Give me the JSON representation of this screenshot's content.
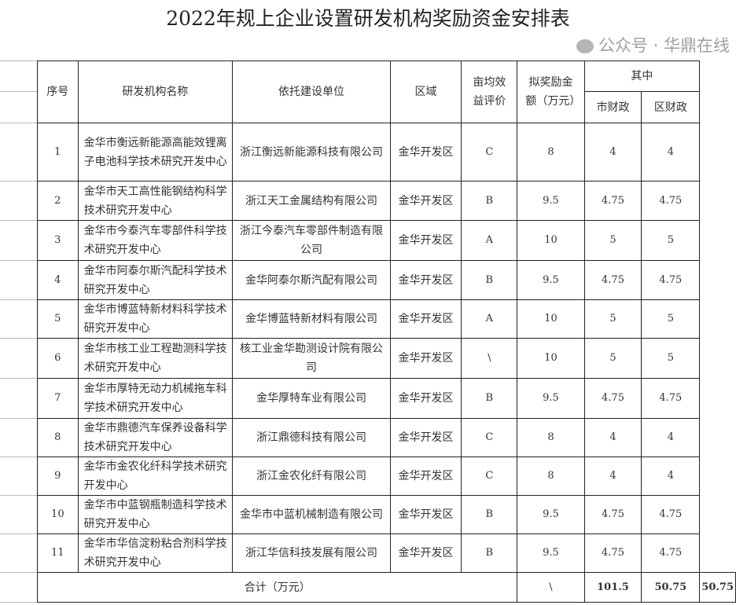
{
  "title": "2022年规上企业设置研发机构奖励资金安排表",
  "headers": {
    "seq": "序号",
    "name": "研发机构名称",
    "unit": "依托建设单位",
    "area": "区域",
    "rating": "亩均效益评价",
    "amount": "拟奖励金额（万元）",
    "of_which": "其中",
    "city": "市财政",
    "district": "区财政"
  },
  "rows": [
    {
      "seq": "1",
      "name": "金华市衡远新能源高能效锂离子电池科学技术研究开发中心",
      "unit": "浙江衡远新能源科技有限公司",
      "area": "金华开发区",
      "rating": "C",
      "amount": "8",
      "city": "4",
      "district": "4"
    },
    {
      "seq": "2",
      "name": "金华市天工高性能钢结构科学技术研究开发中心",
      "unit": "浙江天工金属结构有限公司",
      "area": "金华开发区",
      "rating": "B",
      "amount": "9.5",
      "city": "4.75",
      "district": "4.75"
    },
    {
      "seq": "3",
      "name": "金华市今泰汽车零部件科学技术研究开发中心",
      "unit": "浙江今泰汽车零部件制造有限公司",
      "area": "金华开发区",
      "rating": "A",
      "amount": "10",
      "city": "5",
      "district": "5"
    },
    {
      "seq": "4",
      "name": "金华市阿泰尔斯汽配科学技术研究开发中心",
      "unit": "金华阿泰尔斯汽配有限公司",
      "area": "金华开发区",
      "rating": "B",
      "amount": "9.5",
      "city": "4.75",
      "district": "4.75"
    },
    {
      "seq": "5",
      "name": "金华市博蓝特新材料科学技术研究开发中心",
      "unit": "金华博蓝特新材料有限公司",
      "area": "金华开发区",
      "rating": "A",
      "amount": "10",
      "city": "5",
      "district": "5"
    },
    {
      "seq": "6",
      "name": "金华市核工业工程勘测科学技术研究开发中心",
      "unit": "核工业金华勘测设计院有限公司",
      "area": "金华开发区",
      "rating": "\\",
      "amount": "10",
      "city": "5",
      "district": "5"
    },
    {
      "seq": "7",
      "name": "金华市厚特无动力机械拖车科学技术研究开发中心",
      "unit": "金华厚特车业有限公司",
      "area": "金华开发区",
      "rating": "B",
      "amount": "9.5",
      "city": "4.75",
      "district": "4.75"
    },
    {
      "seq": "8",
      "name": "金华市鼎德汽车保养设备科学技术研究开发中心",
      "unit": "浙江鼎德科技有限公司",
      "area": "金华开发区",
      "rating": "C",
      "amount": "8",
      "city": "4",
      "district": "4"
    },
    {
      "seq": "9",
      "name": "金华市金农化纤科学技术研究开发中心",
      "unit": "浙江金农化纤有限公司",
      "area": "金华开发区",
      "rating": "C",
      "amount": "8",
      "city": "4",
      "district": "4"
    },
    {
      "seq": "10",
      "name": "金华市中蓝钢瓶制造科学技术研究开发中心",
      "unit": "金华市中蓝机械制造有限公司",
      "area": "金华开发区",
      "rating": "B",
      "amount": "9.5",
      "city": "4.75",
      "district": "4.75"
    },
    {
      "seq": "11",
      "name": "金华市华信淀粉粘合剂科学技术研究开发中心",
      "unit": "浙江华信科技发展有限公司",
      "area": "金华开发区",
      "rating": "B",
      "amount": "9.5",
      "city": "4.75",
      "district": "4.75"
    }
  ],
  "total": {
    "label": "合计（万元）",
    "rating": "\\",
    "amount": "101.5",
    "city": "50.75",
    "district": "50.75"
  },
  "watermark": "公众号 · 华鼎在线"
}
